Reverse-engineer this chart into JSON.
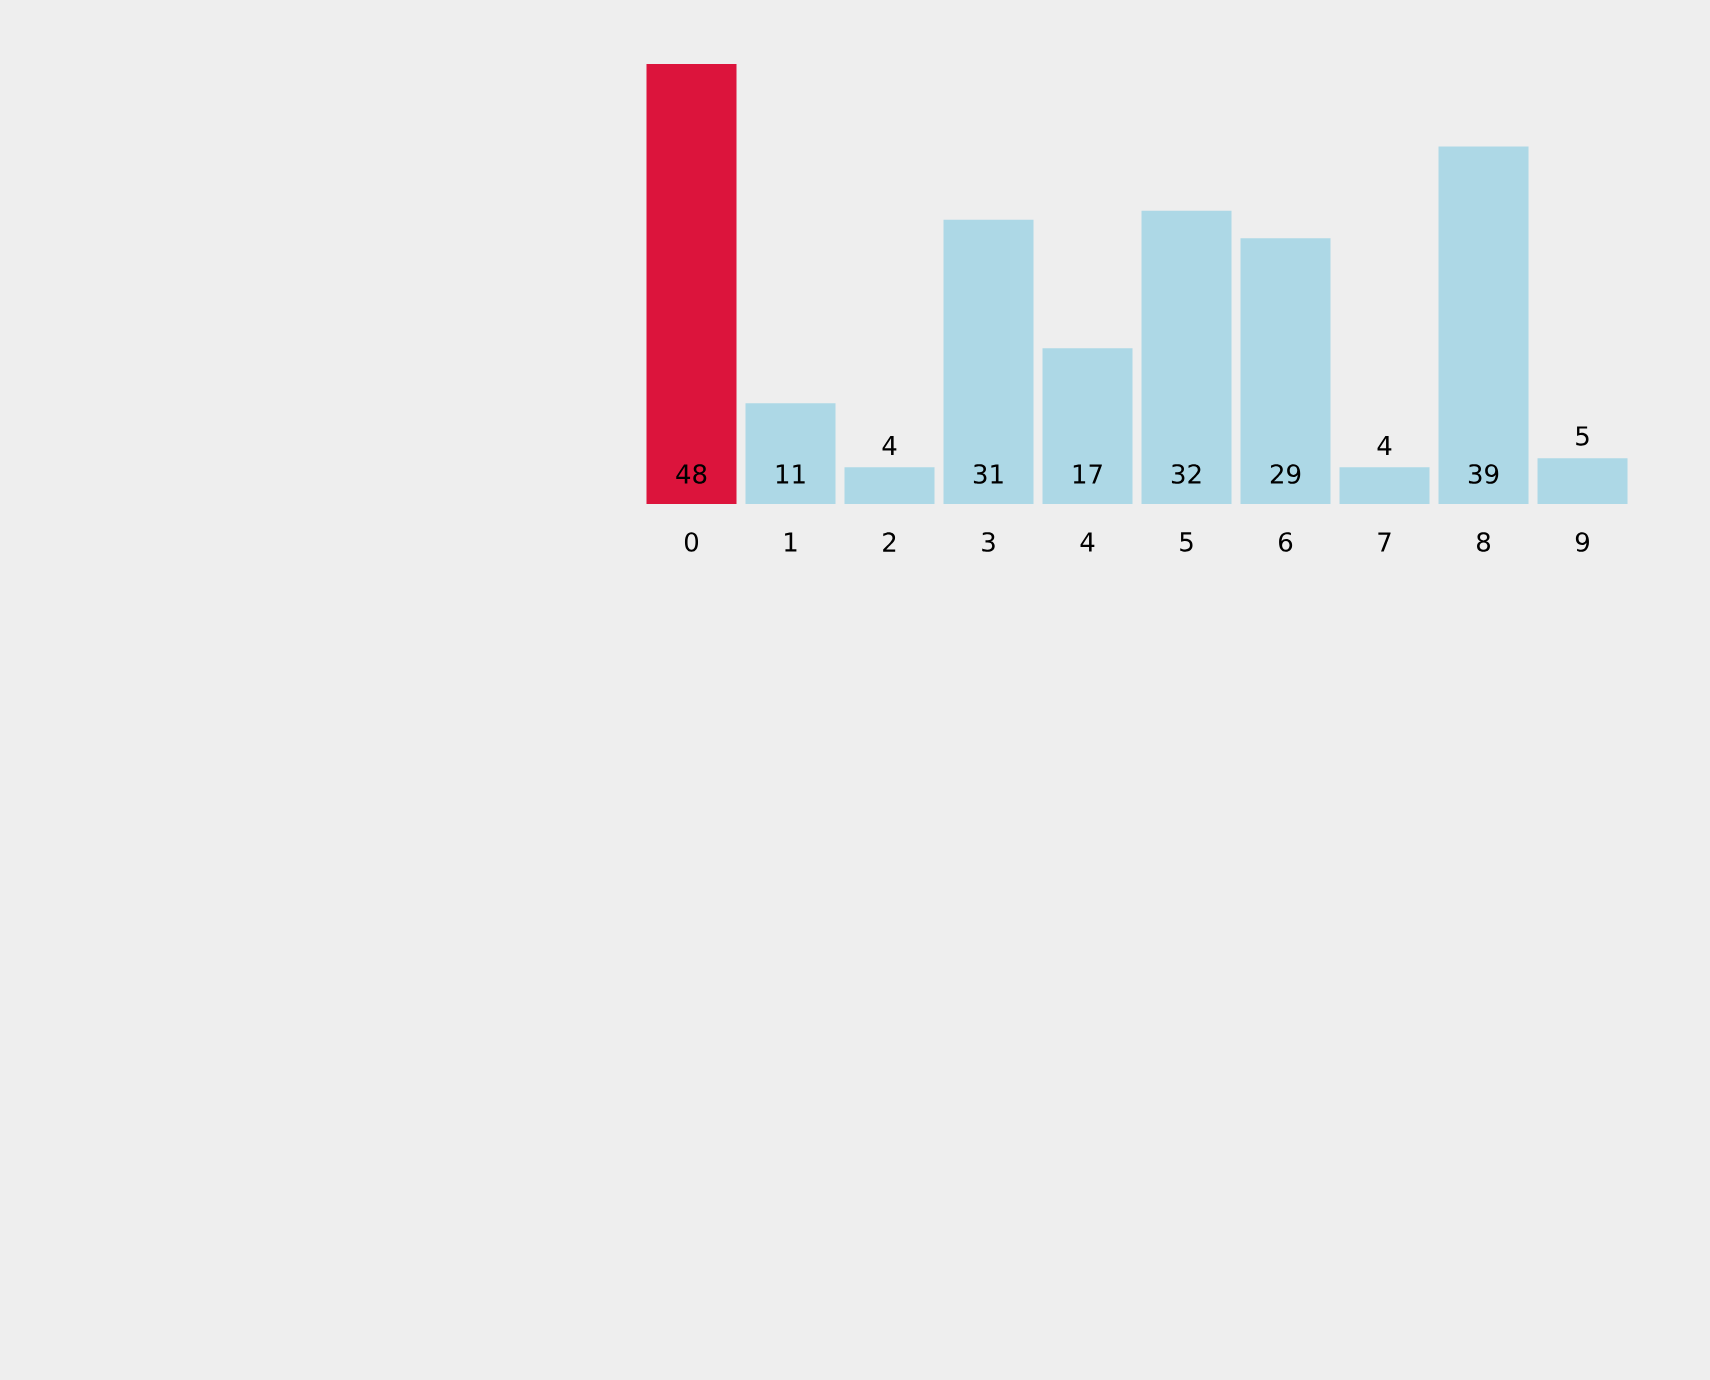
{
  "chart_data": {
    "type": "bar",
    "categories": [
      "0",
      "1",
      "2",
      "3",
      "4",
      "5",
      "6",
      "7",
      "8",
      "9"
    ],
    "values": [
      48,
      11,
      4,
      31,
      17,
      32,
      29,
      4,
      39,
      5
    ],
    "colors": [
      "#dc143c",
      "#add8e6",
      "#add8e6",
      "#add8e6",
      "#add8e6",
      "#add8e6",
      "#add8e6",
      "#add8e6",
      "#add8e6",
      "#add8e6"
    ],
    "data_labels": true
  }
}
